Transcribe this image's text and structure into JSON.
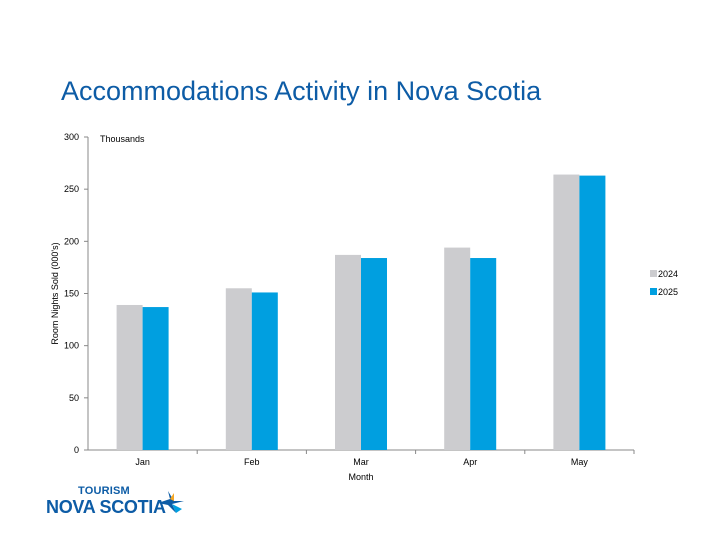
{
  "header": {
    "title": "Accommodations Activity in Nova Scotia"
  },
  "logo": {
    "top_text": "TOURISM",
    "main_text": "NOVA SCOTIA"
  },
  "chart_data": {
    "type": "bar",
    "title": "",
    "unit_label": "Thousands",
    "xlabel": "Month",
    "ylabel": "Room Nights Sold (000's)",
    "categories": [
      "Jan",
      "Feb",
      "Mar",
      "Apr",
      "May"
    ],
    "series": [
      {
        "name": "2024",
        "color": "#cccccf",
        "values": [
          139,
          155,
          187,
          194,
          264
        ]
      },
      {
        "name": "2025",
        "color": "#009fe0",
        "values": [
          137,
          151,
          184,
          184,
          263
        ]
      }
    ],
    "ylim": [
      0,
      300
    ],
    "yticks": [
      0,
      50,
      100,
      150,
      200,
      250,
      300
    ],
    "grid": false,
    "legend": "right"
  }
}
